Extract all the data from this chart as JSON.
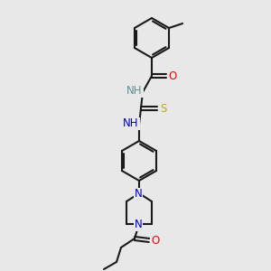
{
  "background_color": "#e8e8e8",
  "bond_color": "#1a1a1a",
  "atom_colors": {
    "N": "#0000cc",
    "O": "#ff0000",
    "S": "#bbaa00",
    "H_label": "#5f9090",
    "C": "#1a1a1a"
  },
  "font_size": 8.5,
  "fig_width": 3.0,
  "fig_height": 3.0,
  "dpi": 100
}
